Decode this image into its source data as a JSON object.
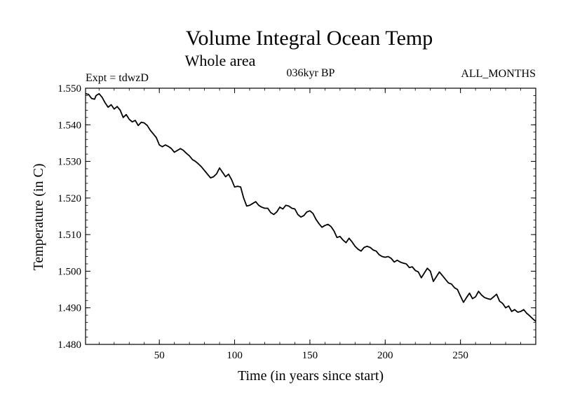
{
  "chart_data": {
    "type": "line",
    "title": "Volume Integral Ocean Temp",
    "subtitle": "Whole area",
    "annotations": {
      "left": "Expt = tdwzD",
      "center": "036kyr BP",
      "right": "ALL_MONTHS"
    },
    "xlabel": "Time (in years since start)",
    "ylabel": "Temperature (in C)",
    "xlim": [
      1,
      300
    ],
    "ylim": [
      1.48,
      1.55
    ],
    "xticks": [
      50,
      100,
      150,
      200,
      250
    ],
    "xtick_labels": [
      "50",
      "100",
      "150",
      "200",
      "250"
    ],
    "yticks": [
      1.48,
      1.49,
      1.5,
      1.51,
      1.52,
      1.53,
      1.54,
      1.55
    ],
    "ytick_labels": [
      "1.480",
      "1.490",
      "1.500",
      "1.510",
      "1.520",
      "1.530",
      "1.540",
      "1.550"
    ],
    "grid": false,
    "legend": "none",
    "series": [
      {
        "color": "#000000",
        "x": [
          1,
          3,
          5,
          7,
          8,
          10,
          12,
          14,
          16,
          18,
          20,
          22,
          24,
          26,
          28,
          30,
          32,
          34,
          36,
          38,
          40,
          42,
          44,
          46,
          48,
          50,
          52,
          54,
          56,
          58,
          60,
          62,
          64,
          66,
          68,
          70,
          72,
          74,
          76,
          78,
          80,
          82,
          84,
          86,
          88,
          90,
          92,
          94,
          96,
          98,
          100,
          102,
          104,
          106,
          108,
          110,
          112,
          114,
          116,
          118,
          120,
          122,
          124,
          126,
          128,
          130,
          132,
          134,
          136,
          138,
          140,
          142,
          144,
          146,
          148,
          150,
          152,
          154,
          156,
          158,
          160,
          162,
          164,
          166,
          168,
          170,
          172,
          174,
          176,
          178,
          180,
          182,
          184,
          186,
          188,
          190,
          192,
          194,
          196,
          198,
          200,
          202,
          204,
          206,
          208,
          210,
          212,
          214,
          216,
          218,
          220,
          222,
          224,
          226,
          228,
          230,
          232,
          234,
          236,
          238,
          240,
          242,
          244,
          246,
          248,
          250,
          252,
          254,
          256,
          258,
          260,
          262,
          264,
          266,
          268,
          270,
          272,
          274,
          276,
          278,
          280,
          282,
          284,
          286,
          288,
          290,
          292,
          294,
          296,
          298,
          300
        ],
        "y": [
          1.5485,
          1.5483,
          1.5472,
          1.547,
          1.548,
          1.5485,
          1.5475,
          1.546,
          1.5448,
          1.5455,
          1.5443,
          1.545,
          1.544,
          1.542,
          1.5428,
          1.5415,
          1.5408,
          1.5412,
          1.5398,
          1.5407,
          1.5405,
          1.5398,
          1.5385,
          1.5375,
          1.5365,
          1.5345,
          1.534,
          1.5345,
          1.5341,
          1.5335,
          1.5325,
          1.533,
          1.5335,
          1.533,
          1.5322,
          1.5315,
          1.5305,
          1.53,
          1.5293,
          1.5285,
          1.5275,
          1.5265,
          1.5255,
          1.5258,
          1.5266,
          1.5282,
          1.527,
          1.5258,
          1.5265,
          1.525,
          1.523,
          1.5232,
          1.523,
          1.52,
          1.5178,
          1.518,
          1.5185,
          1.519,
          1.518,
          1.5175,
          1.5172,
          1.5172,
          1.516,
          1.5155,
          1.5162,
          1.5175,
          1.517,
          1.518,
          1.5178,
          1.5172,
          1.517,
          1.5155,
          1.5148,
          1.5152,
          1.5162,
          1.5165,
          1.5158,
          1.5142,
          1.513,
          1.512,
          1.5125,
          1.5128,
          1.5122,
          1.511,
          1.5092,
          1.5095,
          1.5085,
          1.5078,
          1.509,
          1.508,
          1.5068,
          1.506,
          1.5055,
          1.5065,
          1.5068,
          1.5065,
          1.5058,
          1.5055,
          1.5045,
          1.504,
          1.5038,
          1.504,
          1.5035,
          1.5025,
          1.503,
          1.5025,
          1.5022,
          1.502,
          1.501,
          1.5012,
          1.5002,
          1.4998,
          1.4982,
          1.4995,
          1.5008,
          1.5,
          1.4972,
          1.4985,
          1.4998,
          1.4988,
          1.4978,
          1.4968,
          1.4965,
          1.4955,
          1.495,
          1.4932,
          1.4915,
          1.4928,
          1.494,
          1.4925,
          1.493,
          1.4945,
          1.4935,
          1.4928,
          1.4925,
          1.4923,
          1.493,
          1.4937,
          1.4918,
          1.4912,
          1.49,
          1.4905,
          1.489,
          1.4895,
          1.4888,
          1.489,
          1.4895,
          1.4885,
          1.4878,
          1.487,
          1.4863
        ]
      }
    ]
  }
}
